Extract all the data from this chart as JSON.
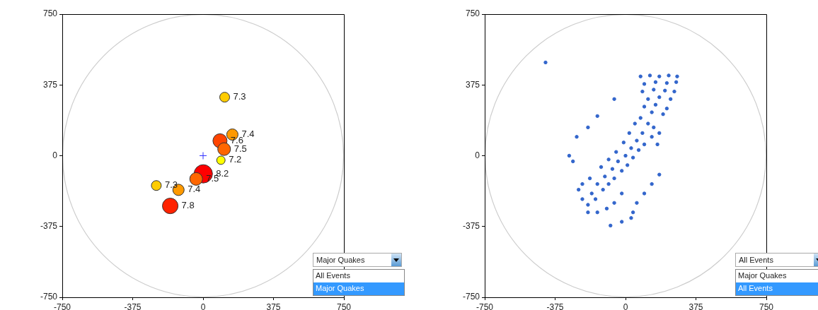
{
  "chart_data": [
    {
      "type": "bubble",
      "xlim": [
        -750,
        750
      ],
      "ylim": [
        -750,
        750
      ],
      "xticks": [
        -750,
        -375,
        0,
        375,
        750
      ],
      "yticks": [
        -750,
        -375,
        0,
        375,
        750
      ],
      "grid": false,
      "legend": false,
      "series": [
        {
          "x": [
            115,
            156,
            90,
            112,
            95,
            1,
            -37,
            -249,
            -131,
            -175
          ],
          "values": [
            310,
            112,
            79,
            35,
            -24,
            -96,
            -123,
            -158,
            -181,
            -266
          ],
          "sizes": [
            0.29,
            0.38,
            0.59,
            0.48,
            0.21,
            1,
            0.48,
            0.29,
            0.38,
            0.72
          ],
          "colors": [
            "#ffcc00",
            "#ff9900",
            "#ff4400",
            "#ff6600",
            "#ffff00",
            "#ff0000",
            "#ff6600",
            "#ffcc00",
            "#ff9900",
            "#ff2200"
          ]
        },
        {
          "type": "scatter",
          "marker": "cross",
          "color": "#3333ff",
          "x": [
            0
          ],
          "values": [
            0
          ]
        }
      ],
      "annotations": [
        {
          "text": "7.3",
          "x": 115,
          "y": 310
        },
        {
          "text": "7.4",
          "x": 156,
          "y": 112
        },
        {
          "text": "7.6",
          "x": 90,
          "y": 79
        },
        {
          "text": "7.5",
          "x": 112,
          "y": 35
        },
        {
          "text": "7.2",
          "x": 95,
          "y": -24
        },
        {
          "text": "8.2",
          "x": 1,
          "y": -96
        },
        {
          "text": "7.5",
          "x": -37,
          "y": -123
        },
        {
          "text": "7.3",
          "x": -249,
          "y": -158
        },
        {
          "text": "7.4",
          "x": -131,
          "y": -181
        },
        {
          "text": "7.8",
          "x": -175,
          "y": -266
        },
        "Major Quakes",
        "All Events",
        "Major Quakes"
      ]
    },
    {
      "type": "scatter",
      "xlim": [
        -750,
        750
      ],
      "ylim": [
        -750,
        750
      ],
      "xticks": [
        -750,
        -375,
        0,
        375,
        750
      ],
      "yticks": [
        -750,
        -375,
        0,
        375,
        750
      ],
      "grid": false,
      "legend": false,
      "marker": "circle",
      "series": [
        {
          "color": "#3366cc",
          "x": [
            80,
            130,
            180,
            230,
            275,
            100,
            160,
            220,
            270,
            90,
            150,
            210,
            260,
            120,
            180,
            240,
            100,
            160,
            220,
            140,
            200,
            -250,
            -230,
            -200,
            -180,
            -150,
            -160,
            -120,
            -110,
            -90,
            -70,
            -60,
            -40,
            -20,
            0,
            10,
            30,
            40,
            60,
            70,
            90,
            100,
            120,
            140,
            150,
            170,
            180,
            -200,
            -150,
            -100,
            -60,
            -20,
            -230,
            -190,
            -130,
            -90,
            -50,
            -10,
            20,
            50,
            80,
            -426,
            -260,
            -300,
            -280,
            -200,
            -150,
            -60,
            40,
            60,
            100,
            140,
            180,
            -80,
            -20,
            30
          ],
          "values": [
            420,
            425,
            420,
            425,
            420,
            380,
            390,
            385,
            390,
            340,
            350,
            345,
            340,
            300,
            310,
            300,
            260,
            270,
            250,
            230,
            220,
            -180,
            -230,
            -260,
            -200,
            -150,
            -230,
            -180,
            -110,
            -150,
            -70,
            -120,
            -30,
            -80,
            0,
            -50,
            40,
            -10,
            80,
            30,
            120,
            60,
            170,
            100,
            150,
            60,
            120,
            -300,
            -300,
            -280,
            -250,
            -200,
            -150,
            -120,
            -60,
            -20,
            20,
            70,
            120,
            170,
            200,
            494,
            100,
            0,
            -30,
            150,
            210,
            300,
            -300,
            -250,
            -200,
            -150,
            -100,
            -370,
            -350,
            -330
          ]
        }
      ],
      "annotations": [
        "All Events",
        "Major Quakes",
        "All Events"
      ]
    }
  ]
}
